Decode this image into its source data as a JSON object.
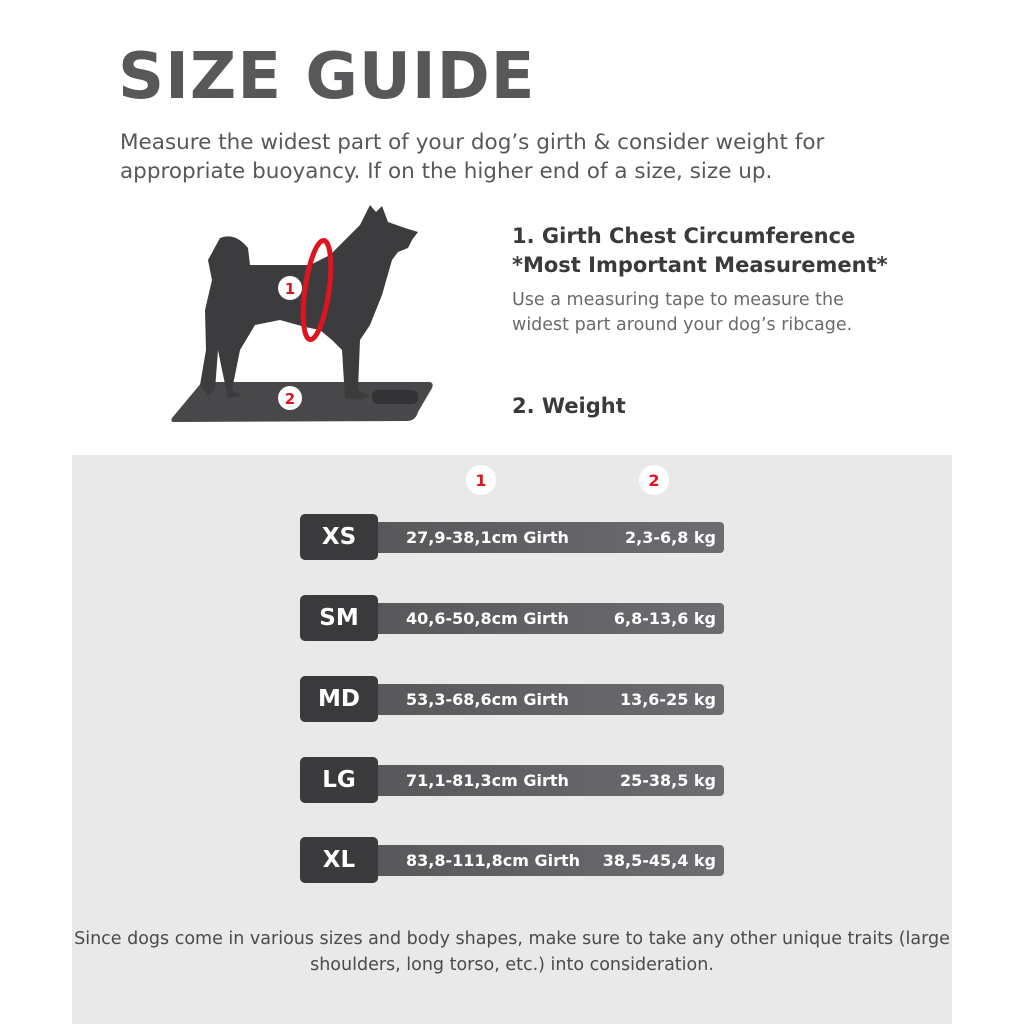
{
  "title": "SIZE GUIDE",
  "intro": "Measure the widest part of your dog’s girth & consider weight for appropriate buoyancy. If on the higher end of a size, size up.",
  "illustration": {
    "marker_1": "1",
    "marker_2": "2",
    "ring_color": "#e0141e"
  },
  "measurements": {
    "girth_title": "1. Girth Chest Circumference",
    "girth_subtitle": "*Most Important Measurement*",
    "girth_desc": "Use a measuring tape to measure the widest part around your dog’s ribcage.",
    "weight_title": "2. Weight"
  },
  "table": {
    "col_badges": [
      "1",
      "2"
    ],
    "rows": [
      {
        "size": "XS",
        "girth": "27,9-38,1cm Girth",
        "weight": "2,3-6,8 kg"
      },
      {
        "size": "SM",
        "girth": "40,6-50,8cm Girth",
        "weight": "6,8-13,6 kg"
      },
      {
        "size": "MD",
        "girth": "53,3-68,6cm Girth",
        "weight": "13,6-25 kg"
      },
      {
        "size": "LG",
        "girth": "71,1-81,3cm Girth",
        "weight": "25-38,5 kg"
      },
      {
        "size": "XL",
        "girth": "83,8-111,8cm Girth",
        "weight": "38,5-45,4 kg"
      }
    ]
  },
  "note": "Since dogs come in various sizes and body shapes, make sure to take any other unique traits (large shoulders, long torso, etc.) into consideration."
}
